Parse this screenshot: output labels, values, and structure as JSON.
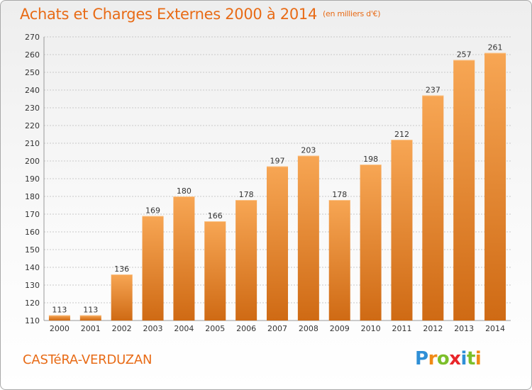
{
  "title": "Achats et Charges Externes 2000 à 2014",
  "unit_note": "(en milliers d'€)",
  "commune": "CASTéRA-VERDUZAN",
  "logo": {
    "letters": [
      {
        "ch": "P",
        "color": "#2f8fd6"
      },
      {
        "ch": "r",
        "color": "#f08a16"
      },
      {
        "ch": "o",
        "color": "#7cbf2a"
      },
      {
        "ch": "x",
        "color": "#e8262a"
      },
      {
        "ch": "i",
        "color": "#2f8fd6"
      },
      {
        "ch": "t",
        "color": "#7cbf2a"
      },
      {
        "ch": "i",
        "color": "#f08a16"
      }
    ]
  },
  "colors": {
    "bar_light": "#f7a654",
    "bar_dark": "#cf6a14",
    "grid": "#c9c9c9",
    "text": "#333333",
    "accent": "#e86b16"
  },
  "chart_data": {
    "type": "bar",
    "title": "Achats et Charges Externes 2000 à 2014",
    "xlabel": "",
    "ylabel": "",
    "categories": [
      "2000",
      "2001",
      "2002",
      "2003",
      "2004",
      "2005",
      "2006",
      "2007",
      "2008",
      "2009",
      "2010",
      "2011",
      "2012",
      "2013",
      "2014"
    ],
    "values": [
      113,
      113,
      136,
      169,
      180,
      166,
      178,
      197,
      203,
      178,
      198,
      212,
      237,
      257,
      261
    ],
    "ylim": [
      110,
      270
    ],
    "yticks": [
      110,
      120,
      130,
      140,
      150,
      160,
      170,
      180,
      190,
      200,
      210,
      220,
      230,
      240,
      250,
      260,
      270
    ],
    "grid": true,
    "legend": "none"
  }
}
